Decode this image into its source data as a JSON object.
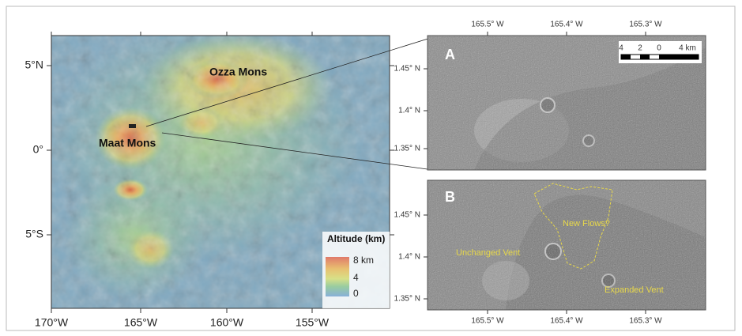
{
  "map": {
    "x_ticks": [
      "170°W",
      "165°W",
      "160°W",
      "155°W"
    ],
    "y_ticks": [
      "5°N",
      "0°",
      "5°S"
    ],
    "features": [
      "Ozza Mons",
      "Maat Mons"
    ],
    "legend": {
      "title": "Altitude (km)",
      "labels": [
        "8 km",
        "4",
        "0"
      ]
    }
  },
  "panel_a": {
    "letter": "A",
    "x_ticks": [
      "165.5° W",
      "165.4° W",
      "165.3° W"
    ],
    "y_ticks": [
      "1.45° N",
      "1.4° N",
      "1.35° N"
    ],
    "scale": [
      "4",
      "2",
      "0",
      "4 km"
    ]
  },
  "panel_b": {
    "letter": "B",
    "x_ticks": [
      "165.5° W",
      "165.4° W",
      "165.3° W"
    ],
    "y_ticks": [
      "1.45° N",
      "1.4° N",
      "1.35° N"
    ],
    "annotations": [
      "New Flows?",
      "Unchanged Vent",
      "Expanded Vent"
    ]
  }
}
